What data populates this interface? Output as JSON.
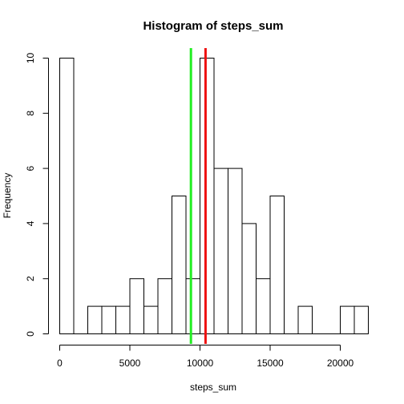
{
  "chart_data": {
    "type": "bar",
    "title": "Histogram of steps_sum",
    "xlabel": "steps_sum",
    "ylabel": "Frequency",
    "bin_width": 1000,
    "bins": [
      {
        "x0": 0,
        "x1": 1000,
        "count": 10
      },
      {
        "x0": 1000,
        "x1": 2000,
        "count": 0
      },
      {
        "x0": 2000,
        "x1": 3000,
        "count": 1
      },
      {
        "x0": 3000,
        "x1": 4000,
        "count": 1
      },
      {
        "x0": 4000,
        "x1": 5000,
        "count": 1
      },
      {
        "x0": 5000,
        "x1": 6000,
        "count": 2
      },
      {
        "x0": 6000,
        "x1": 7000,
        "count": 1
      },
      {
        "x0": 7000,
        "x1": 8000,
        "count": 2
      },
      {
        "x0": 8000,
        "x1": 9000,
        "count": 5
      },
      {
        "x0": 9000,
        "x1": 10000,
        "count": 2
      },
      {
        "x0": 10000,
        "x1": 11000,
        "count": 10
      },
      {
        "x0": 11000,
        "x1": 12000,
        "count": 6
      },
      {
        "x0": 12000,
        "x1": 13000,
        "count": 6
      },
      {
        "x0": 13000,
        "x1": 14000,
        "count": 4
      },
      {
        "x0": 14000,
        "x1": 15000,
        "count": 2
      },
      {
        "x0": 15000,
        "x1": 16000,
        "count": 5
      },
      {
        "x0": 16000,
        "x1": 17000,
        "count": 0
      },
      {
        "x0": 17000,
        "x1": 18000,
        "count": 1
      },
      {
        "x0": 18000,
        "x1": 19000,
        "count": 0
      },
      {
        "x0": 19000,
        "x1": 20000,
        "count": 0
      },
      {
        "x0": 20000,
        "x1": 21000,
        "count": 1
      },
      {
        "x0": 21000,
        "x1": 22000,
        "count": 1
      }
    ],
    "xticks": [
      0,
      5000,
      10000,
      15000,
      20000
    ],
    "yticks": [
      0,
      2,
      4,
      6,
      8,
      10
    ],
    "xlim": [
      0,
      22000
    ],
    "ylim": [
      0,
      10
    ],
    "grid": false,
    "reference_lines": [
      {
        "x": 9354,
        "color": "#22ee22"
      },
      {
        "x": 10395,
        "color": "#ee1111"
      }
    ]
  }
}
